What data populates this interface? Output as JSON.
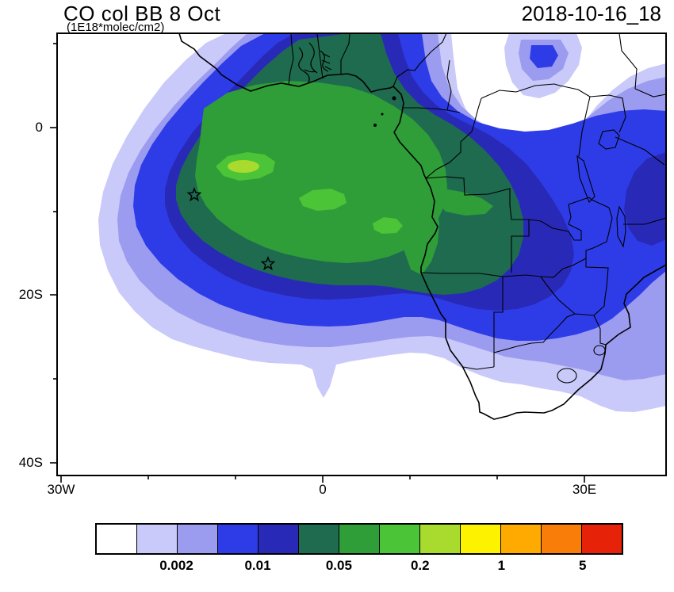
{
  "header": {
    "title": "CO col BB 8 Oct",
    "subtitle": "(1E18*molec/cm2)",
    "datestamp": "2018-10-16_18"
  },
  "axes": {
    "x_ticks": [
      "30W",
      "0",
      "30E"
    ],
    "y_ticks": [
      "0",
      "20S",
      "40S"
    ]
  },
  "colorbar": {
    "labels": [
      "0.002",
      "0.01",
      "0.05",
      "0.2",
      "1",
      "5"
    ],
    "colors": [
      "#ffffff",
      "#c9c9fa",
      "#9b9bf0",
      "#2e3ce8",
      "#2929b8",
      "#1e6b50",
      "#2f9e38",
      "#4cc437",
      "#a9da2e",
      "#fdf300",
      "#ffaa00",
      "#f87d09",
      "#e62309"
    ]
  },
  "chart_data": {
    "type": "heatmap",
    "subtype": "filled_contour_map",
    "title": "CO col BB 8 Oct",
    "units_label": "(1E18*molec/cm2)",
    "timestamp": "2018-10-16_18",
    "x_tick_labels": [
      "30W",
      "0",
      "30E"
    ],
    "y_tick_labels": [
      "0",
      "20S",
      "40S"
    ],
    "contour_level_labels": [
      0.002,
      0.01,
      0.05,
      0.2,
      1,
      5
    ],
    "palette_low_to_high": [
      "#ffffff",
      "#c9c9fa",
      "#9b9bf0",
      "#2e3ce8",
      "#2929b8",
      "#1e6b50",
      "#2f9e38",
      "#4cc437",
      "#a9da2e",
      "#fdf300",
      "#ffaa00",
      "#f87d09",
      "#e62309"
    ],
    "description": "CO column from biomass burning over Africa and SE Atlantic; plume maximum (green, ~0.2-1) centered over the SE Atlantic and Angola/Congo coast, decreasing outward through dark blue, blue and lavender shells; secondary blue band over East Africa.",
    "markers": [
      {
        "symbol": "star",
        "approx_lon": -14.5,
        "approx_lat": -8
      },
      {
        "symbol": "star",
        "approx_lon": -6,
        "approx_lat": -16.5
      }
    ],
    "legend_position": "bottom",
    "grid": false
  }
}
